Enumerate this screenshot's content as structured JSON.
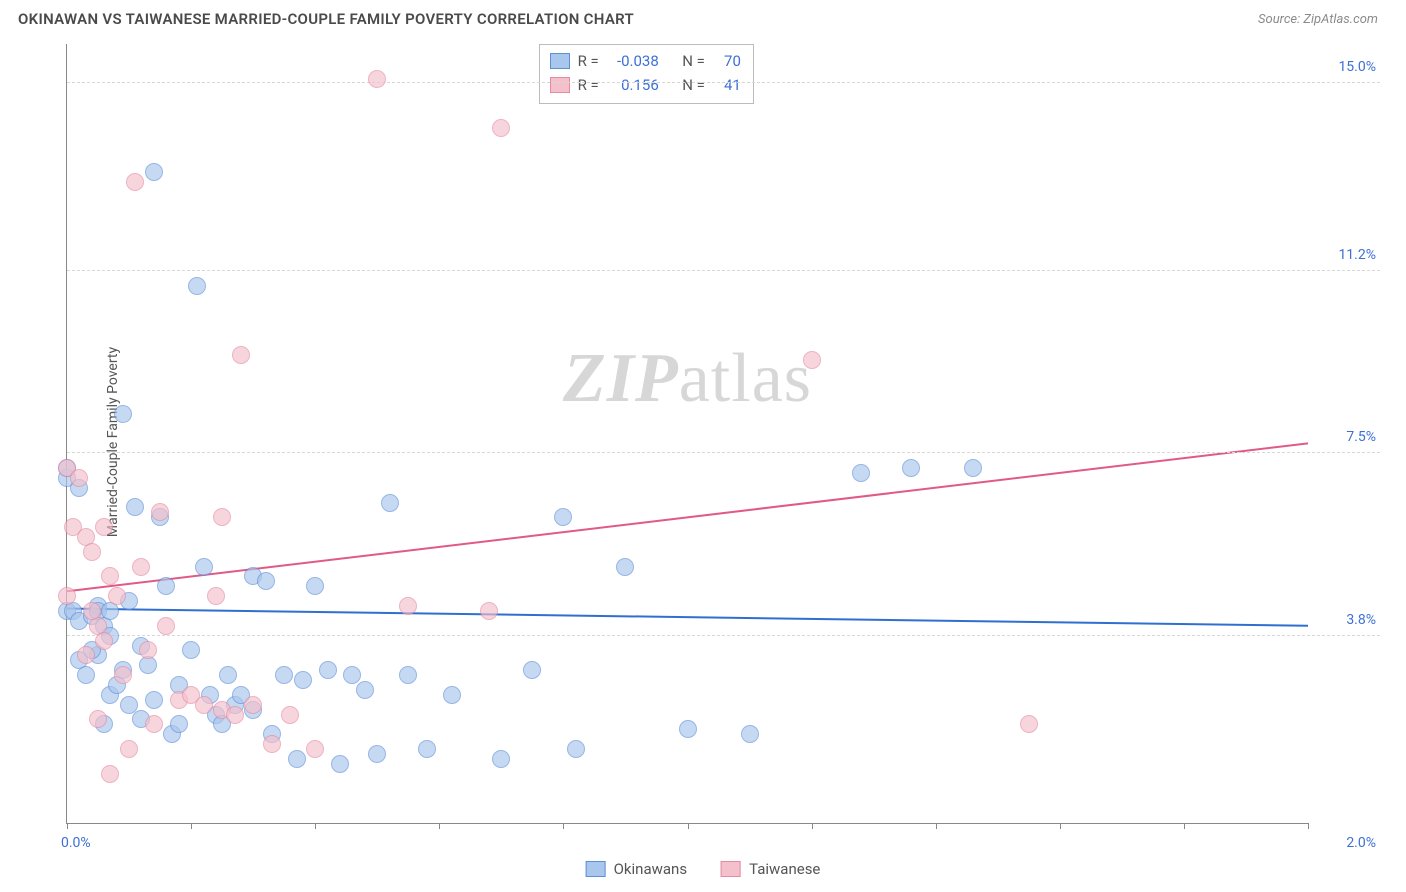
{
  "header": {
    "title": "OKINAWAN VS TAIWANESE MARRIED-COUPLE FAMILY POVERTY CORRELATION CHART",
    "source": "Source: ZipAtlas.com"
  },
  "ylabel": "Married-Couple Family Poverty",
  "watermark": {
    "left": "ZIP",
    "right": "atlas"
  },
  "colors": {
    "series1_fill": "#a9c6ec",
    "series1_stroke": "#5f8fd8",
    "series2_fill": "#f4c0cb",
    "series2_stroke": "#e68aa2",
    "trend1": "#2f6fd0",
    "trend2": "#e05a86",
    "axis_text": "#3d6fd6",
    "grid": "#d8d8d8"
  },
  "chart": {
    "type": "scatter",
    "xlim": [
      0.0,
      2.0
    ],
    "ylim": [
      0.0,
      15.8
    ],
    "xticks": [
      0.0,
      0.2,
      0.4,
      0.6,
      0.8,
      1.0,
      1.2,
      1.4,
      1.6,
      1.8,
      2.0
    ],
    "xaxis_labels": [
      {
        "value": 0.0,
        "text": "0.0%"
      },
      {
        "value": 2.0,
        "text": "2.0%"
      }
    ],
    "ygrid": [
      {
        "value": 3.8,
        "label": "3.8%"
      },
      {
        "value": 7.5,
        "label": "7.5%"
      },
      {
        "value": 11.2,
        "label": "11.2%"
      },
      {
        "value": 15.0,
        "label": "15.0%"
      }
    ],
    "marker_radius": 9,
    "marker_opacity": 0.65,
    "line_width": 2,
    "series": [
      {
        "name": "Okinawans",
        "color_fill": "#a9c6ec",
        "color_stroke": "#5f8fd8",
        "trend_color": "#2f6fd0",
        "R": "-0.038",
        "N": "70",
        "trend": {
          "x1": 0.0,
          "y1": 4.35,
          "x2": 2.0,
          "y2": 4.0
        },
        "points": [
          [
            0.0,
            4.3
          ],
          [
            0.0,
            7.0
          ],
          [
            0.0,
            7.2
          ],
          [
            0.01,
            4.3
          ],
          [
            0.02,
            6.8
          ],
          [
            0.02,
            4.1
          ],
          [
            0.02,
            3.3
          ],
          [
            0.03,
            3.0
          ],
          [
            0.04,
            4.2
          ],
          [
            0.05,
            4.4
          ],
          [
            0.05,
            3.4
          ],
          [
            0.06,
            4.0
          ],
          [
            0.06,
            2.0
          ],
          [
            0.07,
            3.8
          ],
          [
            0.07,
            2.6
          ],
          [
            0.08,
            2.8
          ],
          [
            0.09,
            8.3
          ],
          [
            0.09,
            3.1
          ],
          [
            0.1,
            4.5
          ],
          [
            0.1,
            2.4
          ],
          [
            0.11,
            6.4
          ],
          [
            0.12,
            3.6
          ],
          [
            0.12,
            2.1
          ],
          [
            0.13,
            3.2
          ],
          [
            0.14,
            13.2
          ],
          [
            0.14,
            2.5
          ],
          [
            0.15,
            6.2
          ],
          [
            0.16,
            4.8
          ],
          [
            0.17,
            1.8
          ],
          [
            0.18,
            2.8
          ],
          [
            0.18,
            2.0
          ],
          [
            0.2,
            3.5
          ],
          [
            0.21,
            10.9
          ],
          [
            0.22,
            5.2
          ],
          [
            0.23,
            2.6
          ],
          [
            0.24,
            2.2
          ],
          [
            0.25,
            2.0
          ],
          [
            0.26,
            3.0
          ],
          [
            0.27,
            2.4
          ],
          [
            0.28,
            2.6
          ],
          [
            0.3,
            5.0
          ],
          [
            0.3,
            2.3
          ],
          [
            0.32,
            4.9
          ],
          [
            0.33,
            1.8
          ],
          [
            0.35,
            3.0
          ],
          [
            0.37,
            1.3
          ],
          [
            0.38,
            2.9
          ],
          [
            0.4,
            4.8
          ],
          [
            0.42,
            3.1
          ],
          [
            0.44,
            1.2
          ],
          [
            0.46,
            3.0
          ],
          [
            0.48,
            2.7
          ],
          [
            0.5,
            1.4
          ],
          [
            0.52,
            6.5
          ],
          [
            0.55,
            3.0
          ],
          [
            0.58,
            1.5
          ],
          [
            0.62,
            2.6
          ],
          [
            0.7,
            1.3
          ],
          [
            0.75,
            3.1
          ],
          [
            0.8,
            6.2
          ],
          [
            0.82,
            1.5
          ],
          [
            0.9,
            5.2
          ],
          [
            1.0,
            1.9
          ],
          [
            1.1,
            1.8
          ],
          [
            1.28,
            7.1
          ],
          [
            1.36,
            7.2
          ],
          [
            1.46,
            7.2
          ],
          [
            0.05,
            4.3
          ],
          [
            0.07,
            4.3
          ],
          [
            0.04,
            3.5
          ]
        ]
      },
      {
        "name": "Taiwanese",
        "color_fill": "#f4c0cb",
        "color_stroke": "#e68aa2",
        "trend_color": "#e05a86",
        "R": "0.156",
        "N": "41",
        "trend": {
          "x1": 0.0,
          "y1": 4.7,
          "x2": 2.0,
          "y2": 7.7
        },
        "points": [
          [
            0.0,
            4.6
          ],
          [
            0.0,
            7.2
          ],
          [
            0.01,
            6.0
          ],
          [
            0.02,
            7.0
          ],
          [
            0.03,
            5.8
          ],
          [
            0.03,
            3.4
          ],
          [
            0.04,
            5.5
          ],
          [
            0.05,
            4.0
          ],
          [
            0.05,
            2.1
          ],
          [
            0.06,
            6.0
          ],
          [
            0.06,
            3.7
          ],
          [
            0.07,
            5.0
          ],
          [
            0.07,
            1.0
          ],
          [
            0.08,
            4.6
          ],
          [
            0.09,
            3.0
          ],
          [
            0.1,
            1.5
          ],
          [
            0.11,
            13.0
          ],
          [
            0.12,
            5.2
          ],
          [
            0.13,
            3.5
          ],
          [
            0.14,
            2.0
          ],
          [
            0.15,
            6.3
          ],
          [
            0.16,
            4.0
          ],
          [
            0.18,
            2.5
          ],
          [
            0.2,
            2.6
          ],
          [
            0.22,
            2.4
          ],
          [
            0.24,
            4.6
          ],
          [
            0.25,
            6.2
          ],
          [
            0.25,
            2.3
          ],
          [
            0.27,
            2.2
          ],
          [
            0.28,
            9.5
          ],
          [
            0.3,
            2.4
          ],
          [
            0.33,
            1.6
          ],
          [
            0.36,
            2.2
          ],
          [
            0.4,
            1.5
          ],
          [
            0.5,
            15.1
          ],
          [
            0.55,
            4.4
          ],
          [
            0.68,
            4.3
          ],
          [
            0.7,
            14.1
          ],
          [
            1.2,
            9.4
          ],
          [
            1.55,
            2.0
          ],
          [
            0.04,
            4.3
          ]
        ]
      }
    ]
  },
  "legend": {
    "items": [
      {
        "label": "Okinawans",
        "fill": "#a9c6ec",
        "stroke": "#5f8fd8"
      },
      {
        "label": "Taiwanese",
        "fill": "#f4c0cb",
        "stroke": "#e68aa2"
      }
    ]
  }
}
